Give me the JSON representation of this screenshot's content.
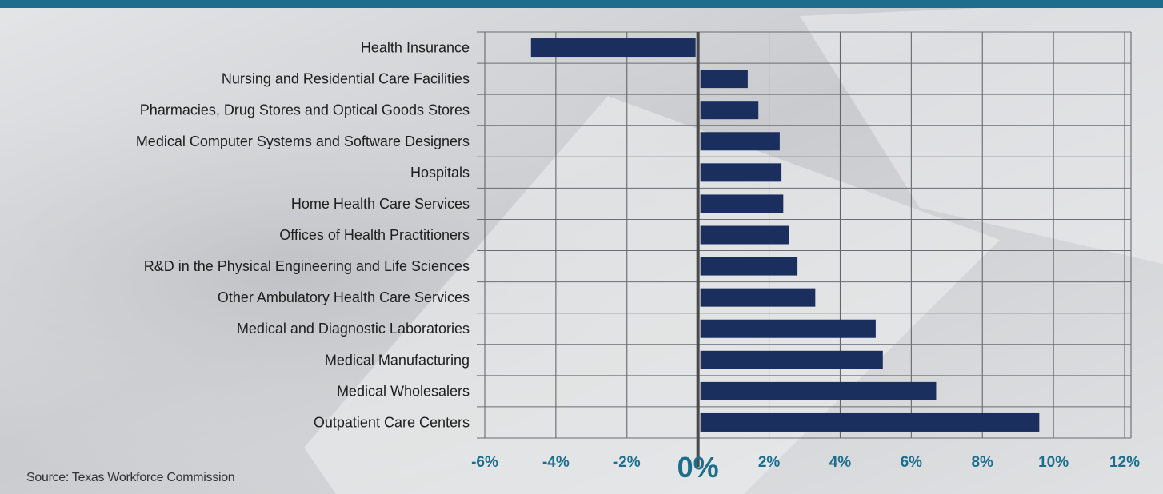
{
  "chart_data": {
    "type": "bar",
    "orientation": "horizontal",
    "categories": [
      "Health Insurance",
      "Nursing and Residential Care Facilities",
      "Pharmacies, Drug Stores and Optical Goods Stores",
      "Medical Computer Systems and Software Designers",
      "Hospitals",
      "Home Health Care Services",
      "Offices of Health Practitioners",
      "R&D in the Physical Engineering and Life Sciences",
      "Other  Ambulatory Health Care Services",
      "Medical and Diagnostic Laboratories",
      "Medical Manufacturing",
      "Medical Wholesalers",
      "Outpatient Care Centers"
    ],
    "values": [
      -4.7,
      1.4,
      1.7,
      2.3,
      2.35,
      2.4,
      2.55,
      2.8,
      3.3,
      5.0,
      5.2,
      6.7,
      9.6
    ],
    "x_ticks": [
      -6,
      -4,
      -2,
      0,
      2,
      4,
      6,
      8,
      10,
      12
    ],
    "x_tick_labels": [
      "-6%",
      "-4%",
      "-2%",
      "0%",
      "2%",
      "4%",
      "6%",
      "8%",
      "10%",
      "12%"
    ],
    "xlim": [
      -6,
      12
    ],
    "title": "",
    "xlabel": "",
    "ylabel": "",
    "grid": true,
    "bar_color": "#1b2f5e",
    "tick_color": "#1c6e8c",
    "source": "Source: Texas Workforce Commission"
  }
}
